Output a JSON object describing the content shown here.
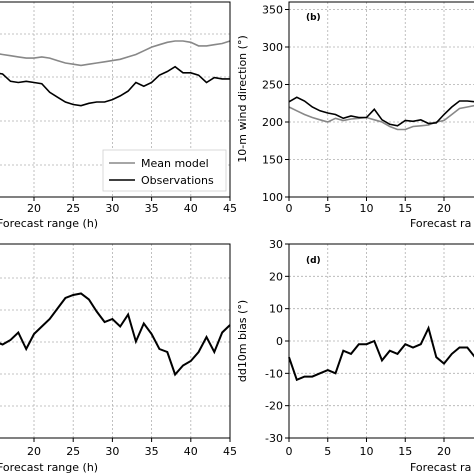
{
  "colors": {
    "model": "#888888",
    "obs": "#000000"
  },
  "chart_data": [
    {
      "type": "line",
      "panel": "a",
      "xlabel": "Forecast range (h)",
      "x_ticks": [
        20,
        25,
        30,
        35,
        40,
        45
      ],
      "xlim": [
        15,
        45
      ],
      "legend": {
        "placement": "lower-right",
        "entries": [
          "Mean model",
          "Observations"
        ]
      },
      "series": [
        {
          "name": "Mean model",
          "color": "#888888",
          "x": [
            15,
            16,
            17,
            18,
            19,
            20,
            21,
            22,
            23,
            24,
            25,
            26,
            27,
            28,
            29,
            30,
            31,
            32,
            33,
            34,
            35,
            36,
            37,
            38,
            39,
            40,
            41,
            42,
            43,
            44,
            45
          ],
          "y": [
            0.72,
            0.73,
            0.74,
            0.75,
            0.76,
            0.76,
            0.75,
            0.76,
            0.78,
            0.8,
            0.81,
            0.82,
            0.81,
            0.8,
            0.79,
            0.78,
            0.77,
            0.75,
            0.73,
            0.7,
            0.67,
            0.65,
            0.63,
            0.62,
            0.62,
            0.63,
            0.66,
            0.66,
            0.65,
            0.64,
            0.62
          ]
        },
        {
          "name": "Observations",
          "color": "#000000",
          "x": [
            15,
            16,
            17,
            18,
            19,
            20,
            21,
            22,
            23,
            24,
            25,
            26,
            27,
            28,
            29,
            30,
            31,
            32,
            33,
            34,
            35,
            36,
            37,
            38,
            39,
            40,
            41,
            42,
            43,
            44,
            45
          ],
          "y": [
            0.88,
            0.89,
            0.95,
            0.96,
            0.95,
            0.96,
            0.97,
            1.04,
            1.08,
            1.12,
            1.14,
            1.15,
            1.13,
            1.12,
            1.12,
            1.1,
            1.07,
            1.03,
            0.96,
            0.99,
            0.96,
            0.9,
            0.87,
            0.83,
            0.88,
            0.88,
            0.9,
            0.96,
            0.92,
            0.93,
            0.93
          ]
        }
      ]
    },
    {
      "type": "line",
      "panel": "b",
      "letter": "(b)",
      "ylabel": "10-m wind direction (°)",
      "xlabel": "Forecast ra",
      "x_ticks": [
        0,
        5,
        10,
        15,
        20
      ],
      "y_ticks": [
        100,
        150,
        200,
        250,
        300,
        350
      ],
      "xlim": [
        0,
        28
      ],
      "ylim": [
        100,
        360
      ],
      "series": [
        {
          "name": "Mean model",
          "color": "#888888",
          "x": [
            0,
            1,
            2,
            3,
            4,
            5,
            6,
            7,
            8,
            9,
            10,
            11,
            12,
            13,
            14,
            15,
            16,
            17,
            18,
            19,
            20,
            21,
            22,
            23,
            24,
            25,
            26,
            27,
            28
          ],
          "y": [
            220,
            215,
            210,
            206,
            203,
            200,
            205,
            202,
            204,
            205,
            206,
            203,
            200,
            194,
            190,
            190,
            194,
            195,
            196,
            200,
            202,
            210,
            218,
            220,
            222,
            221,
            223,
            224,
            225
          ]
        },
        {
          "name": "Observations",
          "color": "#000000",
          "x": [
            0,
            1,
            2,
            3,
            4,
            5,
            6,
            7,
            8,
            9,
            10,
            11,
            12,
            13,
            14,
            15,
            16,
            17,
            18,
            19,
            20,
            21,
            22,
            23,
            24,
            25,
            26,
            27,
            28
          ],
          "y": [
            227,
            233,
            228,
            220,
            215,
            212,
            210,
            205,
            208,
            206,
            206,
            217,
            203,
            197,
            195,
            202,
            201,
            203,
            198,
            199,
            210,
            220,
            228,
            228,
            227,
            226,
            228,
            229,
            228
          ]
        }
      ]
    },
    {
      "type": "line",
      "panel": "c",
      "xlabel": "Forecast range (h)",
      "x_ticks": [
        20,
        25,
        30,
        35,
        40,
        45
      ],
      "xlim": [
        15,
        45
      ],
      "series": [
        {
          "name": "Observations",
          "color": "#000000",
          "x": [
            15,
            16,
            17,
            18,
            19,
            20,
            21,
            22,
            23,
            24,
            25,
            26,
            27,
            28,
            29,
            30,
            31,
            32,
            33,
            34,
            35,
            36,
            37,
            38,
            39,
            40,
            41,
            42,
            43,
            44,
            45
          ],
          "y": [
            0.35,
            0.33,
            0.36,
            0.41,
            0.3,
            0.4,
            0.45,
            0.5,
            0.57,
            0.64,
            0.66,
            0.67,
            0.63,
            0.55,
            0.48,
            0.5,
            0.45,
            0.53,
            0.35,
            0.47,
            0.4,
            0.3,
            0.28,
            0.13,
            0.19,
            0.22,
            0.28,
            0.38,
            0.28,
            0.41,
            0.46
          ]
        }
      ]
    },
    {
      "type": "line",
      "panel": "d",
      "letter": "(d)",
      "ylabel": "dd10m bias (°)",
      "xlabel": "Forecast ra",
      "x_ticks": [
        0,
        5,
        10,
        15,
        20
      ],
      "y_ticks": [
        -30,
        -20,
        -10,
        0,
        10,
        20,
        30
      ],
      "xlim": [
        0,
        28
      ],
      "ylim": [
        -30,
        30
      ],
      "series": [
        {
          "name": "Observations",
          "color": "#000000",
          "x": [
            0,
            1,
            2,
            3,
            4,
            5,
            6,
            7,
            8,
            9,
            10,
            11,
            12,
            13,
            14,
            15,
            16,
            17,
            18,
            19,
            20,
            21,
            22,
            23,
            24,
            25,
            26,
            27,
            28
          ],
          "y": [
            -5,
            -12,
            -11,
            -11,
            -10,
            -9,
            -10,
            -3,
            -4,
            -1,
            -1,
            0,
            -6,
            -3,
            -4,
            -1,
            -2,
            -1,
            4,
            -5,
            -7,
            -4,
            -2,
            -2,
            -5,
            -3,
            -1,
            -2,
            -2
          ]
        }
      ]
    }
  ]
}
